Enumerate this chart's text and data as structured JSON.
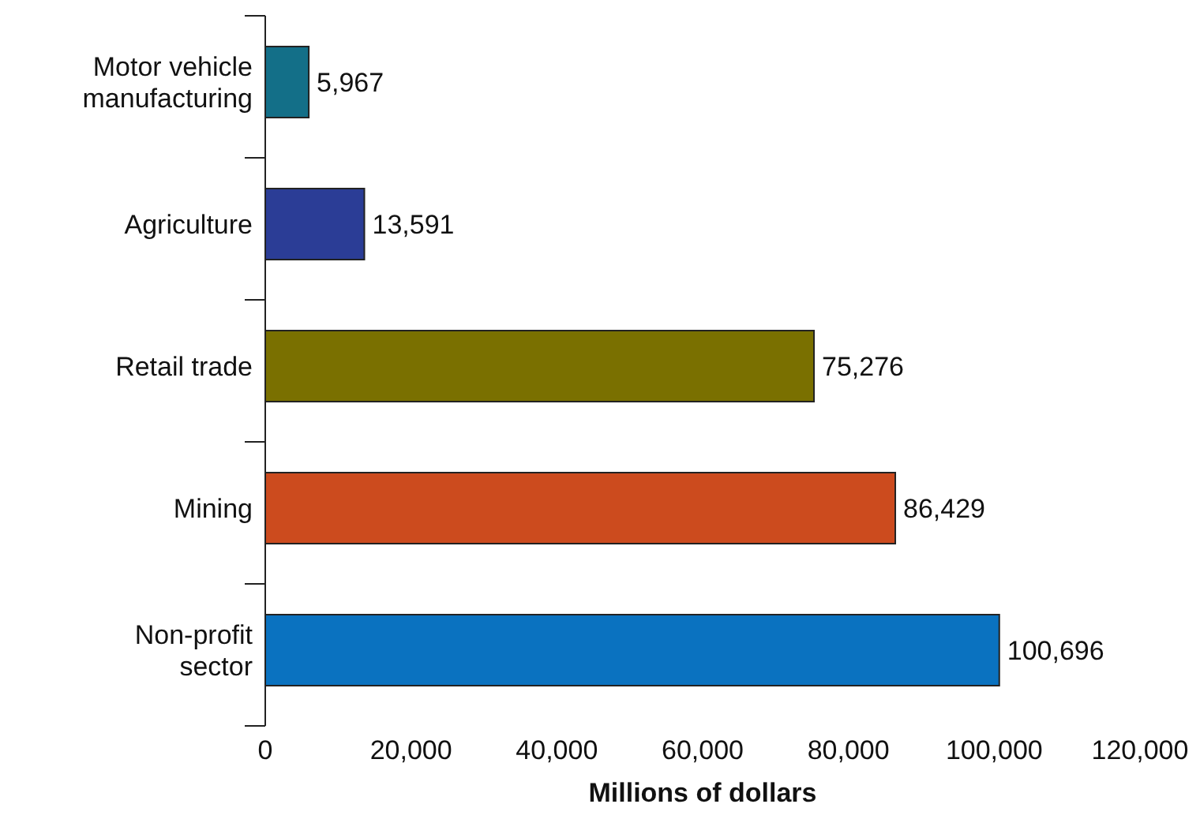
{
  "chart_data": {
    "type": "bar",
    "orientation": "horizontal",
    "xlabel": "Millions of dollars",
    "categories": [
      "Motor vehicle manufacturing",
      "Agriculture",
      "Retail trade",
      "Mining",
      "Non-profit sector"
    ],
    "values": [
      5967,
      13591,
      75276,
      86429,
      100696
    ],
    "colors": [
      "#136f88",
      "#2b3d96",
      "#7a7000",
      "#cc4b1e",
      "#0a72c0"
    ],
    "xlim": [
      0,
      120000
    ],
    "xticks": [
      {
        "value": 0,
        "label": "0"
      },
      {
        "value": 20000,
        "label": "20,000"
      },
      {
        "value": 40000,
        "label": "40,000"
      },
      {
        "value": 60000,
        "label": "60,000"
      },
      {
        "value": 80000,
        "label": "80,000"
      },
      {
        "value": 100000,
        "label": "100,000"
      },
      {
        "value": 120000,
        "label": "120,000"
      }
    ],
    "value_labels": [
      "5,967",
      "13,591",
      "75,276",
      "86,429",
      "100,696"
    ],
    "grid": false
  }
}
